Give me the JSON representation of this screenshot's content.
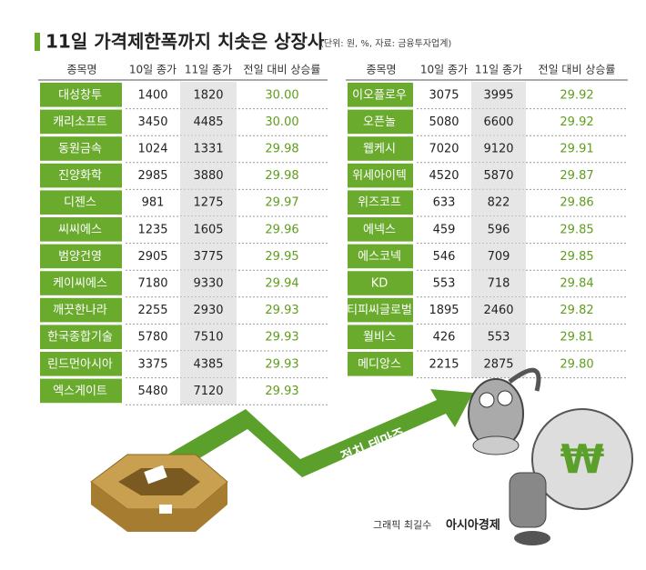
{
  "header": {
    "title": "11일 가격제한폭까지 치솟은 상장사",
    "note": "(단위: 원, %, 자료: 금융투자업계)"
  },
  "tables": [
    {
      "columns": [
        "종목명",
        "10일 종가",
        "11일 종가",
        "전일 대비 상승률"
      ],
      "rows": [
        [
          "대성창투",
          "1400",
          "1820",
          "30.00"
        ],
        [
          "캐리소프트",
          "3450",
          "4485",
          "30.00"
        ],
        [
          "동원금속",
          "1024",
          "1331",
          "29.98"
        ],
        [
          "진양화학",
          "2985",
          "3880",
          "29.98"
        ],
        [
          "디젠스",
          "981",
          "1275",
          "29.97"
        ],
        [
          "씨씨에스",
          "1235",
          "1605",
          "29.96"
        ],
        [
          "범양건영",
          "2905",
          "3775",
          "29.95"
        ],
        [
          "케이씨에스",
          "7180",
          "9330",
          "29.94"
        ],
        [
          "깨끗한나라",
          "2255",
          "2930",
          "29.93"
        ],
        [
          "한국종합기술",
          "5780",
          "7510",
          "29.93"
        ],
        [
          "린드먼아시아",
          "3375",
          "4385",
          "29.93"
        ],
        [
          "엑스게이트",
          "5480",
          "7120",
          "29.93"
        ]
      ]
    },
    {
      "columns": [
        "종목명",
        "10일 종가",
        "11일 종가",
        "전일 대비 상승률"
      ],
      "rows": [
        [
          "이오플로우",
          "3075",
          "3995",
          "29.92"
        ],
        [
          "오픈놀",
          "5080",
          "6600",
          "29.92"
        ],
        [
          "웹케시",
          "7020",
          "9120",
          "29.91"
        ],
        [
          "위세아이텍",
          "4520",
          "5870",
          "29.87"
        ],
        [
          "위즈코프",
          "633",
          "822",
          "29.86"
        ],
        [
          "에넥스",
          "459",
          "596",
          "29.85"
        ],
        [
          "에스코넥",
          "546",
          "709",
          "29.85"
        ],
        [
          "KD",
          "553",
          "718",
          "29.84"
        ],
        [
          "티피씨글로벌",
          "1895",
          "2460",
          "29.82"
        ],
        [
          "월비스",
          "426",
          "553",
          "29.81"
        ],
        [
          "메디앙스",
          "2215",
          "2875",
          "29.80"
        ]
      ]
    }
  ],
  "arrow_label": "정치 테마주",
  "credit": "그래픽 최길수",
  "logo": "아시아경제"
}
